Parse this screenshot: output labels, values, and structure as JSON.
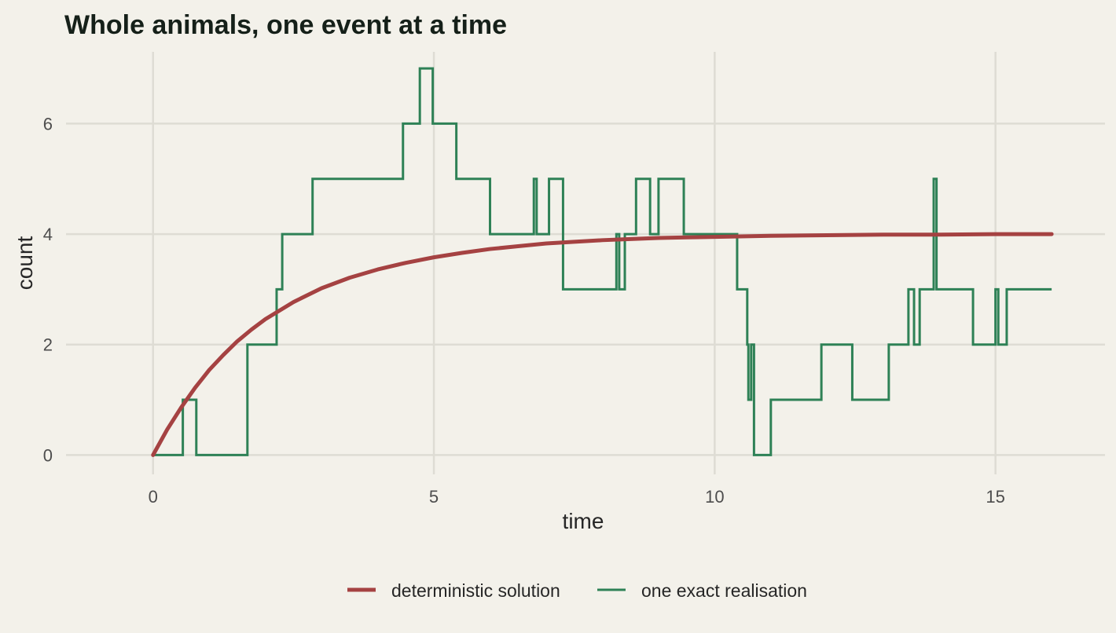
{
  "colors": {
    "background": "#f3f1ea",
    "grid": "#dedcd4",
    "deterministic": "#a54242",
    "realisation": "#2e8156"
  },
  "chart_data": {
    "type": "line",
    "title": "Whole animals, one event at a time",
    "xlabel": "time",
    "ylabel": "count",
    "xlim": [
      -1.55,
      16.95
    ],
    "ylim": [
      -0.35,
      7.3
    ],
    "xticks": [
      0,
      5,
      10,
      15
    ],
    "yticks": [
      0,
      2,
      4,
      6
    ],
    "grid": true,
    "legend_position": "bottom",
    "series": [
      {
        "name": "deterministic solution",
        "type": "line",
        "color": "#a54242",
        "x": [
          0,
          0.25,
          0.5,
          0.75,
          1,
          1.25,
          1.5,
          1.75,
          2,
          2.5,
          3,
          3.5,
          4,
          4.5,
          5,
          5.5,
          6,
          6.5,
          7,
          7.5,
          8,
          8.5,
          9,
          9.5,
          10,
          11,
          12,
          13,
          14,
          15,
          16
        ],
        "y": [
          0,
          0.46,
          0.86,
          1.22,
          1.54,
          1.81,
          2.06,
          2.27,
          2.46,
          2.77,
          3.02,
          3.21,
          3.36,
          3.48,
          3.58,
          3.66,
          3.73,
          3.78,
          3.83,
          3.86,
          3.89,
          3.91,
          3.93,
          3.94,
          3.95,
          3.97,
          3.98,
          3.99,
          3.99,
          4.0,
          4.0
        ]
      },
      {
        "name": "one exact realisation",
        "type": "step",
        "color": "#2e8156",
        "x": [
          0,
          0.53,
          0.77,
          1.68,
          2.2,
          2.3,
          2.84,
          4.45,
          4.75,
          4.98,
          5.4,
          6.0,
          6.78,
          6.83,
          7.05,
          7.3,
          8.25,
          8.3,
          8.4,
          8.6,
          8.85,
          9.0,
          9.45,
          10.4,
          10.58,
          10.6,
          10.65,
          10.7,
          11.0,
          11.9,
          12.45,
          13.1,
          13.45,
          13.55,
          13.65,
          13.9,
          13.95,
          14.6,
          15.0,
          15.05,
          15.2,
          16.0
        ],
        "y": [
          0,
          1,
          0,
          2,
          3,
          4,
          5,
          6,
          7,
          6,
          5,
          4,
          5,
          4,
          5,
          3,
          4,
          3,
          4,
          5,
          4,
          5,
          4,
          3,
          2,
          1,
          2,
          0,
          1,
          2,
          1,
          2,
          3,
          2,
          3,
          5,
          3,
          2,
          3,
          2,
          3,
          3
        ]
      }
    ]
  }
}
